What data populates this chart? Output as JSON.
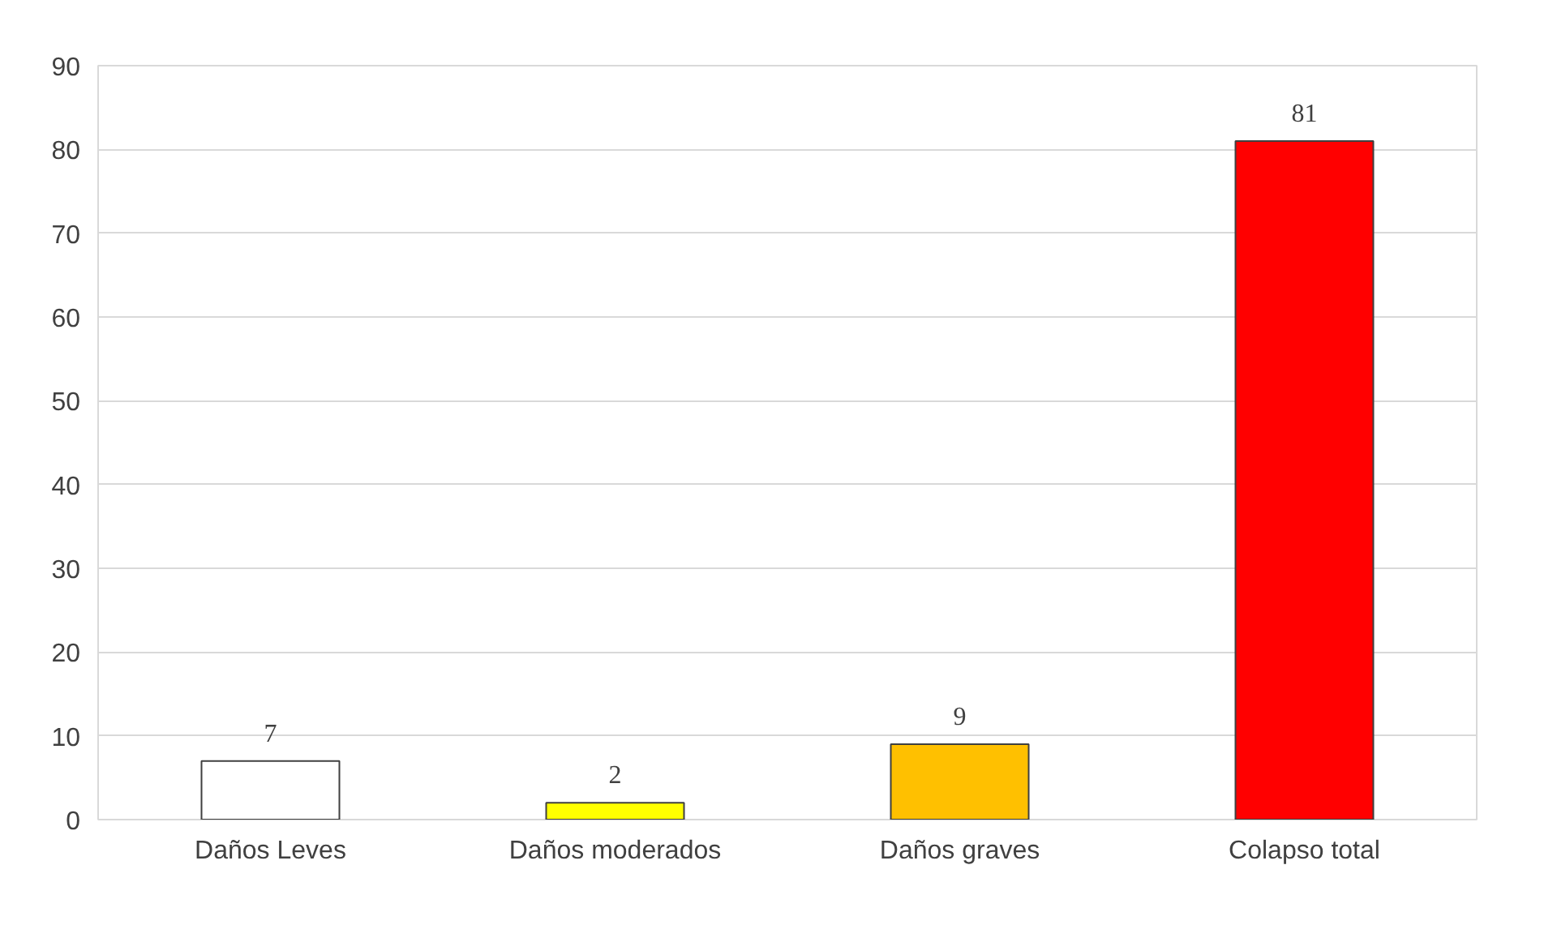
{
  "chart_data": {
    "type": "bar",
    "categories": [
      "Daños Leves",
      "Daños moderados",
      "Daños graves",
      "Colapso total"
    ],
    "values": [
      7,
      2,
      9,
      81
    ],
    "colors": [
      "#ffffff",
      "#ffff00",
      "#ffc000",
      "#ff0000"
    ],
    "ylim": [
      0,
      90
    ],
    "yticks": [
      0,
      10,
      20,
      30,
      40,
      50,
      60,
      70,
      80,
      90
    ],
    "grid": "y",
    "data_labels": true
  }
}
